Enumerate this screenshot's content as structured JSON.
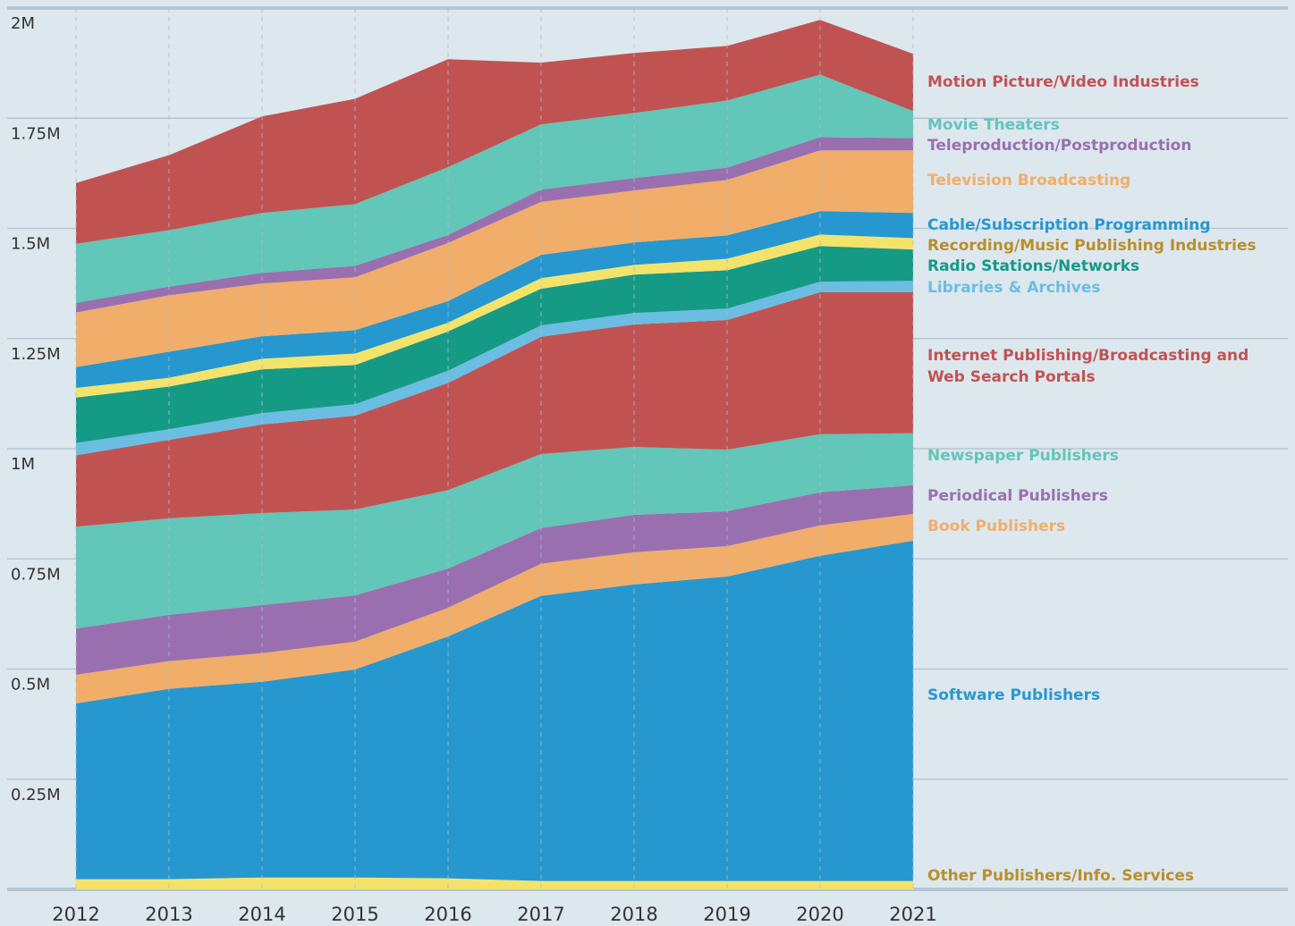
{
  "chart_data": {
    "type": "stacked_area",
    "x": [
      2012,
      2013,
      2014,
      2015,
      2016,
      2017,
      2018,
      2019,
      2020,
      2021
    ],
    "ylim": [
      0,
      2000000
    ],
    "yticks": [
      {
        "value": 250000,
        "label": "0.25M"
      },
      {
        "value": 500000,
        "label": "0.5M"
      },
      {
        "value": 750000,
        "label": "0.75M"
      },
      {
        "value": 1000000,
        "label": "1M"
      },
      {
        "value": 1250000,
        "label": "1.25M"
      },
      {
        "value": 1500000,
        "label": "1.5M"
      },
      {
        "value": 1750000,
        "label": "1.75M"
      },
      {
        "value": 2000000,
        "label": "2M"
      }
    ],
    "grid": true,
    "series": [
      {
        "name": "Other Publishers/Info. Services",
        "color": "#f3e36b",
        "label_color": "#b98f2c",
        "values": [
          23000,
          23000,
          27000,
          27000,
          25000,
          19000,
          19000,
          19000,
          19000,
          19000
        ]
      },
      {
        "name": "Software Publishers",
        "color": "#2698cf",
        "values": [
          399000,
          432000,
          444000,
          472000,
          549000,
          647000,
          673000,
          691000,
          738000,
          772000
        ]
      },
      {
        "name": "Book Publishers",
        "color": "#f0ae6a",
        "values": [
          65000,
          63000,
          65000,
          63000,
          65000,
          73000,
          73000,
          69000,
          69000,
          61000
        ]
      },
      {
        "name": "Periodical Publishers",
        "color": "#9a6fb0",
        "values": [
          105000,
          105000,
          109000,
          105000,
          89000,
          81000,
          85000,
          79000,
          75000,
          65000
        ]
      },
      {
        "name": "Newspaper Publishers",
        "color": "#62c6b8",
        "values": [
          231000,
          219000,
          209000,
          195000,
          178000,
          168000,
          154000,
          140000,
          132000,
          118000
        ]
      },
      {
        "name": "Internet Publishing/Broadcasting and Web Search Portals",
        "color": "#c05352",
        "values": [
          162000,
          178000,
          201000,
          213000,
          243000,
          266000,
          278000,
          294000,
          322000,
          320000
        ]
      },
      {
        "name": "Libraries & Archives",
        "color": "#6cbde2",
        "values": [
          28000,
          24000,
          26000,
          26000,
          28000,
          26000,
          26000,
          26000,
          24000,
          26000
        ]
      },
      {
        "name": "Radio Stations/Networks",
        "color": "#159a86",
        "values": [
          103000,
          97000,
          99000,
          89000,
          89000,
          83000,
          87000,
          87000,
          81000,
          71000
        ]
      },
      {
        "name": "Recording/Music Publishing Industries",
        "color": "#f3e36b",
        "label_color": "#b98f2c",
        "values": [
          22000,
          20000,
          24000,
          26000,
          20000,
          24000,
          22000,
          26000,
          26000,
          26000
        ]
      },
      {
        "name": "Cable/Subscription Programming",
        "color": "#2698cf",
        "values": [
          47000,
          59000,
          51000,
          53000,
          49000,
          53000,
          51000,
          53000,
          53000,
          57000
        ]
      },
      {
        "name": "Television Broadcasting",
        "color": "#f0ae6a",
        "values": [
          124000,
          128000,
          120000,
          120000,
          132000,
          120000,
          118000,
          126000,
          138000,
          142000
        ]
      },
      {
        "name": "Teleproduction/Postproduction",
        "color": "#9a6fb0",
        "values": [
          22000,
          20000,
          24000,
          26000,
          18000,
          28000,
          28000,
          28000,
          30000,
          28000
        ]
      },
      {
        "name": "Movie Theaters",
        "color": "#62c6b8",
        "values": [
          134000,
          128000,
          136000,
          140000,
          154000,
          148000,
          148000,
          152000,
          142000,
          61000
        ]
      },
      {
        "name": "Motion Picture/Video Industries",
        "color": "#c05352",
        "values": [
          138000,
          170000,
          219000,
          239000,
          245000,
          140000,
          136000,
          124000,
          124000,
          130000
        ]
      }
    ]
  }
}
